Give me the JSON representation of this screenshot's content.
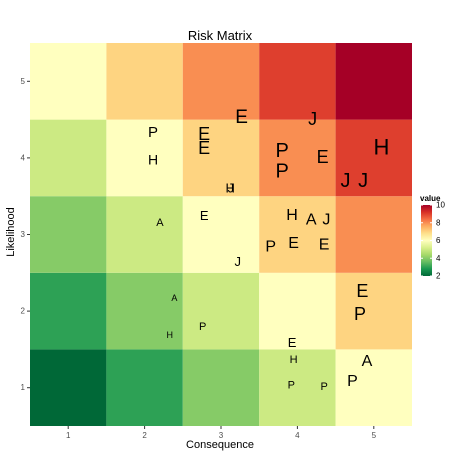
{
  "chart_data": {
    "type": "heatmap",
    "title": "Risk Matrix",
    "xlabel": "Consequence",
    "ylabel": "Likelihood",
    "x_ticks": [
      1,
      2,
      3,
      4,
      5
    ],
    "y_ticks": [
      1,
      2,
      3,
      4,
      5
    ],
    "xlim": [
      0.5,
      5.5
    ],
    "ylim": [
      0.5,
      5.5
    ],
    "grid": false,
    "legend": {
      "title": "value",
      "position": "right",
      "breaks": [
        2,
        4,
        6,
        8,
        10
      ],
      "range": [
        2,
        10
      ]
    },
    "palette": [
      "#006837",
      "#1A9850",
      "#66BD63",
      "#A6D96A",
      "#D9EF8B",
      "#FFFFBF",
      "#FEE08B",
      "#FDAE61",
      "#F46D43",
      "#D73027",
      "#A50026"
    ],
    "cells": [
      {
        "x": 1,
        "y": 1,
        "value": 2
      },
      {
        "x": 2,
        "y": 1,
        "value": 3
      },
      {
        "x": 3,
        "y": 1,
        "value": 4
      },
      {
        "x": 4,
        "y": 1,
        "value": 5
      },
      {
        "x": 5,
        "y": 1,
        "value": 6
      },
      {
        "x": 1,
        "y": 2,
        "value": 3
      },
      {
        "x": 2,
        "y": 2,
        "value": 4
      },
      {
        "x": 3,
        "y": 2,
        "value": 5
      },
      {
        "x": 4,
        "y": 2,
        "value": 6
      },
      {
        "x": 5,
        "y": 2,
        "value": 7
      },
      {
        "x": 1,
        "y": 3,
        "value": 4
      },
      {
        "x": 2,
        "y": 3,
        "value": 5
      },
      {
        "x": 3,
        "y": 3,
        "value": 6
      },
      {
        "x": 4,
        "y": 3,
        "value": 7
      },
      {
        "x": 5,
        "y": 3,
        "value": 8
      },
      {
        "x": 1,
        "y": 4,
        "value": 5
      },
      {
        "x": 2,
        "y": 4,
        "value": 6
      },
      {
        "x": 3,
        "y": 4,
        "value": 7
      },
      {
        "x": 4,
        "y": 4,
        "value": 8
      },
      {
        "x": 5,
        "y": 4,
        "value": 9
      },
      {
        "x": 1,
        "y": 5,
        "value": 6
      },
      {
        "x": 2,
        "y": 5,
        "value": 7
      },
      {
        "x": 3,
        "y": 5,
        "value": 8
      },
      {
        "x": 4,
        "y": 5,
        "value": 9
      },
      {
        "x": 5,
        "y": 5,
        "value": 10
      }
    ],
    "points": [
      {
        "label": "E",
        "x": 3.27,
        "y": 4.53,
        "size": 19
      },
      {
        "label": "J",
        "x": 4.2,
        "y": 4.51,
        "size": 18
      },
      {
        "label": "P",
        "x": 2.11,
        "y": 4.33,
        "size": 15
      },
      {
        "label": "E",
        "x": 2.78,
        "y": 4.31,
        "size": 18
      },
      {
        "label": "E",
        "x": 2.78,
        "y": 4.13,
        "size": 18
      },
      {
        "label": "H",
        "x": 2.11,
        "y": 3.98,
        "size": 14
      },
      {
        "label": "P",
        "x": 3.8,
        "y": 4.09,
        "size": 20
      },
      {
        "label": "E",
        "x": 4.33,
        "y": 4.01,
        "size": 18
      },
      {
        "label": "H",
        "x": 5.1,
        "y": 4.14,
        "size": 22
      },
      {
        "label": "P",
        "x": 3.8,
        "y": 3.82,
        "size": 20
      },
      {
        "label": "J",
        "x": 4.63,
        "y": 3.7,
        "size": 20
      },
      {
        "label": "J",
        "x": 4.86,
        "y": 3.7,
        "size": 20
      },
      {
        "label": "H",
        "x": 3.12,
        "y": 3.61,
        "size": 13
      },
      {
        "label": "J",
        "x": 3.13,
        "y": 3.61,
        "size": 13
      },
      {
        "label": "E",
        "x": 2.78,
        "y": 3.25,
        "size": 13
      },
      {
        "label": "H",
        "x": 3.93,
        "y": 3.25,
        "size": 16
      },
      {
        "label": "A",
        "x": 4.18,
        "y": 3.19,
        "size": 16
      },
      {
        "label": "J",
        "x": 4.38,
        "y": 3.19,
        "size": 16
      },
      {
        "label": "A",
        "x": 2.2,
        "y": 3.15,
        "size": 11
      },
      {
        "label": "P",
        "x": 3.65,
        "y": 2.84,
        "size": 16
      },
      {
        "label": "E",
        "x": 3.95,
        "y": 2.88,
        "size": 16
      },
      {
        "label": "E",
        "x": 4.35,
        "y": 2.86,
        "size": 16
      },
      {
        "label": "J",
        "x": 3.22,
        "y": 2.65,
        "size": 13
      },
      {
        "label": "E",
        "x": 4.85,
        "y": 2.26,
        "size": 18
      },
      {
        "label": "A",
        "x": 2.39,
        "y": 2.17,
        "size": 9
      },
      {
        "label": "P",
        "x": 4.82,
        "y": 1.96,
        "size": 18
      },
      {
        "label": "P",
        "x": 2.76,
        "y": 1.79,
        "size": 11
      },
      {
        "label": "H",
        "x": 2.33,
        "y": 1.69,
        "size": 9
      },
      {
        "label": "E",
        "x": 3.93,
        "y": 1.59,
        "size": 13
      },
      {
        "label": "H",
        "x": 3.95,
        "y": 1.36,
        "size": 11
      },
      {
        "label": "A",
        "x": 4.91,
        "y": 1.34,
        "size": 16
      },
      {
        "label": "P",
        "x": 4.72,
        "y": 1.08,
        "size": 16
      },
      {
        "label": "P",
        "x": 3.92,
        "y": 1.03,
        "size": 11
      },
      {
        "label": "P",
        "x": 4.35,
        "y": 1.01,
        "size": 11
      }
    ]
  }
}
